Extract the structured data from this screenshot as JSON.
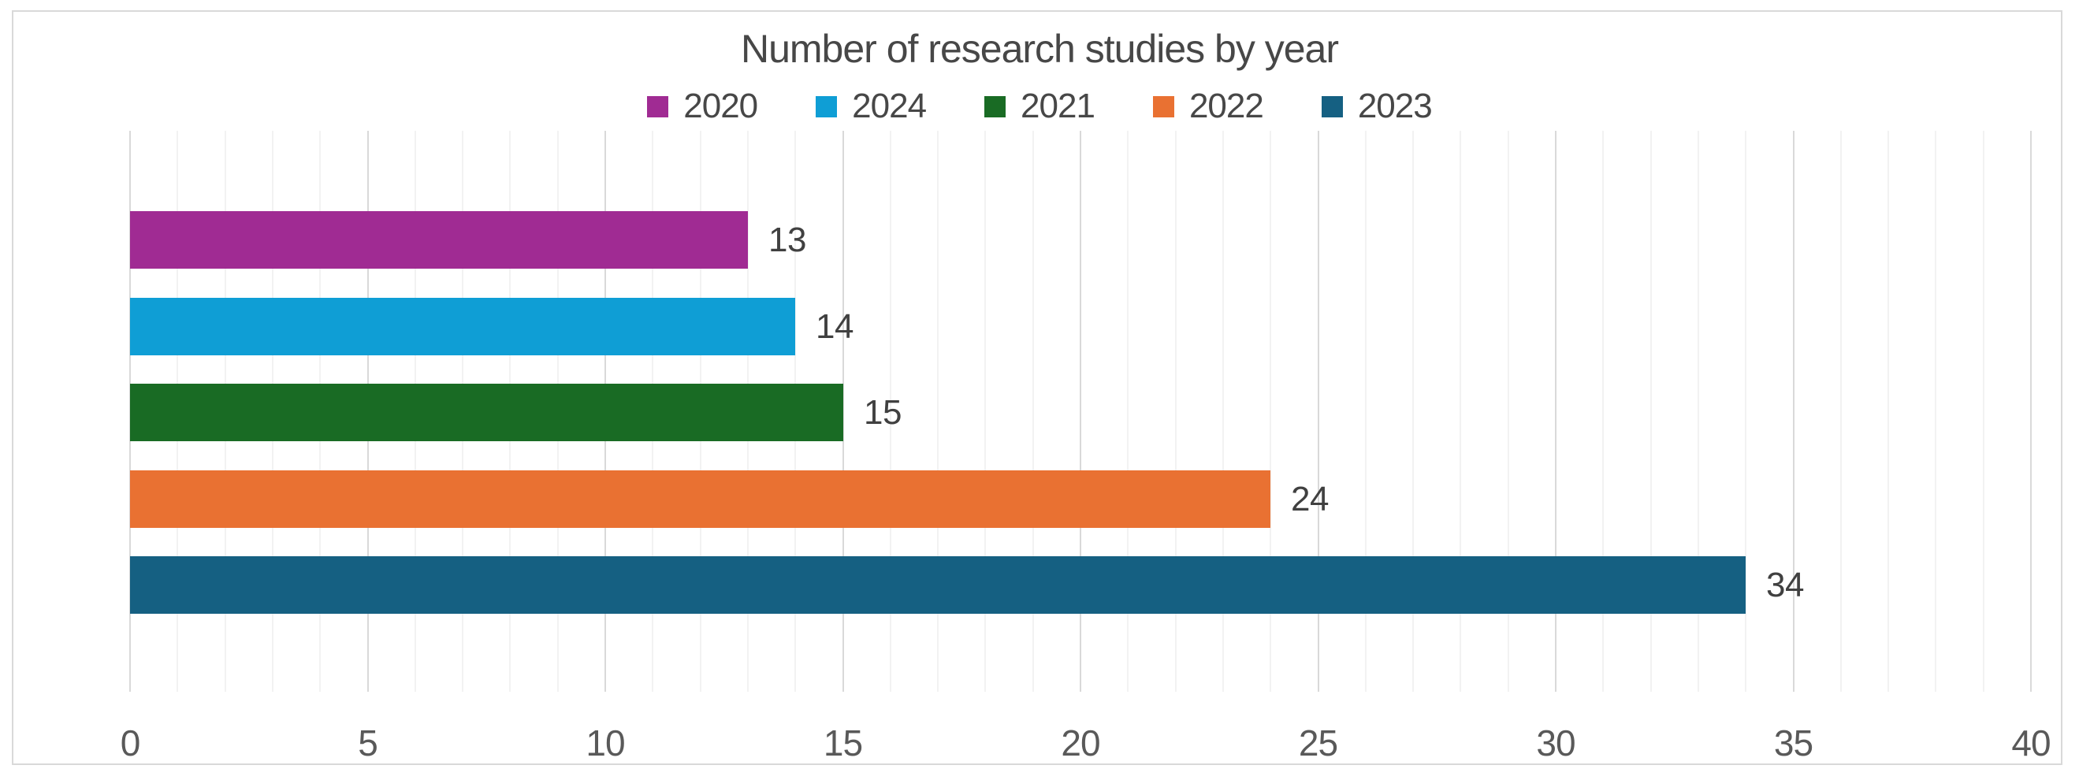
{
  "chart_data": {
    "type": "bar",
    "orientation": "horizontal",
    "title": "Number of research studies by year",
    "categories": [
      "2020",
      "2024",
      "2021",
      "2022",
      "2023"
    ],
    "values": [
      13,
      14,
      15,
      24,
      34
    ],
    "series_colors": [
      "#A02B93",
      "#0F9ED5",
      "#196B24",
      "#E97132",
      "#156082"
    ],
    "data_labels": [
      "13",
      "14",
      "15",
      "24",
      "34"
    ],
    "xlim": [
      0,
      40
    ],
    "x_ticks": [
      "0",
      "5",
      "10",
      "15",
      "20",
      "25",
      "30",
      "35",
      "40"
    ],
    "x_tick_values": [
      0,
      5,
      10,
      15,
      20,
      25,
      30,
      35,
      40
    ],
    "minor_grid_step": 1,
    "major_grid_step": 5,
    "grid_on": true,
    "legend_position": "top",
    "legend_entries": [
      {
        "label": "2020",
        "color": "#A02B93"
      },
      {
        "label": "2024",
        "color": "#0F9ED5"
      },
      {
        "label": "2021",
        "color": "#196B24"
      },
      {
        "label": "2022",
        "color": "#E97132"
      },
      {
        "label": "2023",
        "color": "#156082"
      }
    ],
    "style": {
      "title_color": "#474747",
      "label_color": "#404040",
      "tick_color": "#595959",
      "major_grid_color": "#D9D9D9",
      "minor_grid_color": "#F2F2F2",
      "border_color": "#D9D9D9",
      "background": "#FFFFFF"
    }
  }
}
